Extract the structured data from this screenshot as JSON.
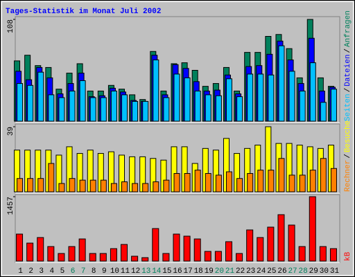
{
  "chart_data": [
    {
      "type": "bar",
      "title": "Tages-Statistik im Monat Juli 2002",
      "categories": [
        "1",
        "2",
        "3",
        "4",
        "5",
        "6",
        "7",
        "8",
        "9",
        "10",
        "11",
        "12",
        "13",
        "14",
        "15",
        "16",
        "17",
        "18",
        "19",
        "20",
        "21",
        "22",
        "23",
        "24",
        "25",
        "26",
        "27",
        "28",
        "29",
        "30",
        "31"
      ],
      "category_colors": [
        "#000000",
        "#000000",
        "#000000",
        "#000000",
        "#000000",
        "#00805c",
        "#00805c",
        "#000000",
        "#000000",
        "#000000",
        "#000000",
        "#000000",
        "#00805c",
        "#00805c",
        "#000000",
        "#000000",
        "#000000",
        "#000000",
        "#000000",
        "#00805c",
        "#00805c",
        "#000000",
        "#000000",
        "#000000",
        "#000000",
        "#000000",
        "#00805c",
        "#00805c",
        "#000000",
        "#000000",
        "#000000"
      ],
      "legend_separator": "/",
      "ylim": [
        0,
        108
      ],
      "yticks": [
        108
      ],
      "series": [
        {
          "name": "Anfragen",
          "color": "#00805c",
          "values": [
            64,
            70,
            59,
            57,
            34,
            51,
            61,
            32,
            32,
            38,
            34,
            28,
            23,
            74,
            32,
            61,
            62,
            54,
            37,
            40,
            57,
            32,
            73,
            73,
            90,
            92,
            77,
            46,
            108,
            46,
            37
          ]
        },
        {
          "name": "Dateien",
          "color": "#0000ff",
          "values": [
            53,
            44,
            57,
            46,
            29,
            40,
            51,
            26,
            27,
            35,
            31,
            22,
            21,
            70,
            28,
            60,
            56,
            42,
            32,
            33,
            49,
            29,
            58,
            59,
            71,
            85,
            65,
            40,
            88,
            32,
            36
          ]
        },
        {
          "name": "Seiten",
          "color": "#00c0ff",
          "values": [
            40,
            38,
            52,
            28,
            25,
            32,
            43,
            25,
            25,
            32,
            28,
            21,
            21,
            65,
            25,
            50,
            46,
            32,
            28,
            27,
            45,
            26,
            50,
            50,
            49,
            80,
            53,
            32,
            62,
            20,
            34
          ]
        }
      ]
    },
    {
      "type": "bar",
      "legend_separator": "/",
      "ylim": [
        0,
        39
      ],
      "yticks": [
        39
      ],
      "series": [
        {
          "name": "Besuche",
          "color": "#ffff00",
          "values": [
            25,
            25,
            25,
            25,
            22,
            27,
            23,
            25,
            23,
            24,
            22,
            21,
            21,
            20,
            19,
            27,
            27,
            17,
            26,
            25,
            32,
            23,
            26,
            28,
            39,
            29,
            29,
            28,
            27,
            26,
            28
          ]
        },
        {
          "name": "Rechner",
          "color": "#ff8000",
          "values": [
            8,
            8,
            8,
            17,
            5,
            8,
            7,
            7,
            7,
            5,
            6,
            5,
            5,
            6,
            7,
            11,
            11,
            13,
            11,
            10,
            12,
            8,
            11,
            13,
            13,
            20,
            10,
            10,
            13,
            20,
            14
          ]
        }
      ]
    },
    {
      "type": "bar",
      "ylim": [
        0,
        1457
      ],
      "yticks": [
        1457
      ],
      "series": [
        {
          "name": "kB",
          "color": "#ff0000",
          "values": [
            611,
            407,
            533,
            329,
            172,
            329,
            501,
            172,
            172,
            282,
            376,
            110,
            78,
            736,
            172,
            611,
            564,
            501,
            219,
            219,
            439,
            172,
            705,
            533,
            768,
            1050,
            815,
            329,
            1457,
            329,
            282
          ]
        }
      ]
    }
  ]
}
